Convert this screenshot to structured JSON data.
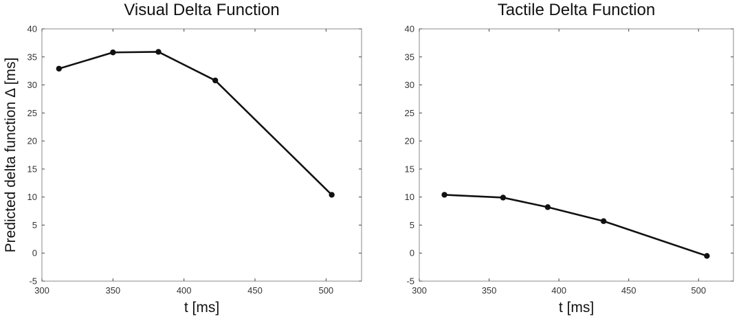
{
  "chart_data": [
    {
      "type": "line",
      "title": "Visual Delta Function",
      "xlabel": "t [ms]",
      "ylabel": "Predicted delta function Δ [ms]",
      "xlim": [
        300,
        525
      ],
      "ylim": [
        -5,
        40
      ],
      "xticks": [
        300,
        350,
        400,
        450,
        500
      ],
      "yticks": [
        -5,
        0,
        5,
        10,
        15,
        20,
        25,
        30,
        35,
        40
      ],
      "grid": false,
      "series": [
        {
          "x": [
            312,
            350,
            382,
            422,
            504
          ],
          "y": [
            32.9,
            35.8,
            35.9,
            30.8,
            10.4
          ],
          "color": "#111111"
        }
      ]
    },
    {
      "type": "line",
      "title": "Tactile Delta Function",
      "xlabel": "t [ms]",
      "ylabel": "",
      "xlim": [
        300,
        525
      ],
      "ylim": [
        -5,
        40
      ],
      "xticks": [
        300,
        350,
        400,
        450,
        500
      ],
      "yticks": [
        -5,
        0,
        5,
        10,
        15,
        20,
        25,
        30,
        35,
        40
      ],
      "grid": false,
      "series": [
        {
          "x": [
            318,
            360,
            392,
            432,
            506
          ],
          "y": [
            10.4,
            9.9,
            8.2,
            5.7,
            -0.5
          ],
          "color": "#111111"
        }
      ]
    }
  ]
}
